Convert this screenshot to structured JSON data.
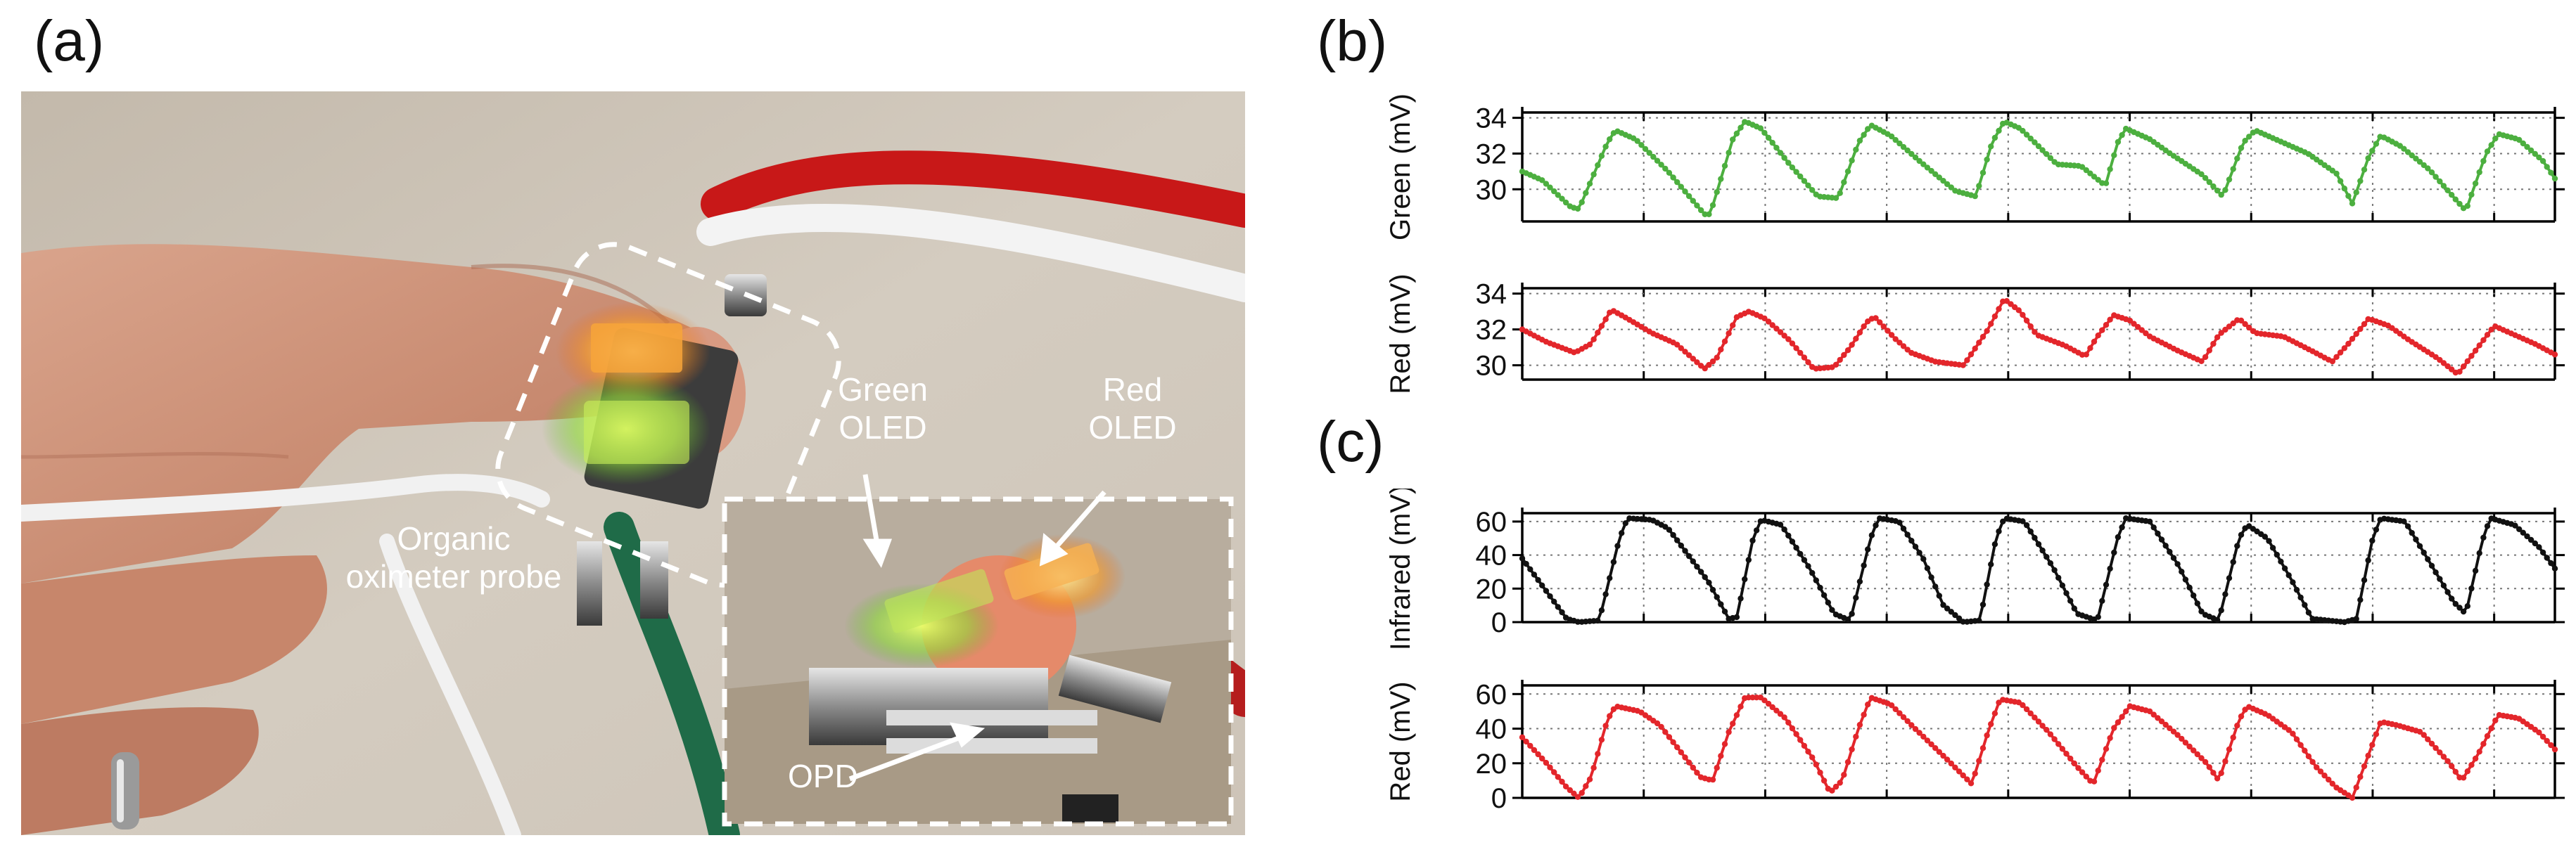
{
  "panels": {
    "a": "(a)",
    "b": "(b)",
    "c": "(c)"
  },
  "photo": {
    "callouts": {
      "green_oled_line1": "Green",
      "green_oled_line2": "OLED",
      "red_oled_line1": "Red",
      "red_oled_line2": "OLED",
      "probe_line1": "Organic",
      "probe_line2": "oximeter probe",
      "opd": "OPD"
    }
  },
  "colors": {
    "green_trace": "#4caf3f",
    "red_trace": "#e3262b",
    "infrared_trace": "#111111",
    "callout_text": "#ffffff"
  },
  "chart_data": [
    {
      "id": "b-green",
      "panel": "(b)",
      "type": "line",
      "ylabel": "Green (mV)",
      "ylim": [
        28.2,
        34.3
      ],
      "yticks": [
        30,
        32,
        34
      ],
      "xticks_count": 8,
      "grid": "dotted",
      "color": "#4caf3f",
      "knots": [
        [
          0,
          31.0
        ],
        [
          0.25,
          30.5
        ],
        [
          0.6,
          29.0
        ],
        [
          0.7,
          28.9
        ],
        [
          1.05,
          32.6
        ],
        [
          1.15,
          33.3
        ],
        [
          1.4,
          32.8
        ],
        [
          1.8,
          31.0
        ],
        [
          2.25,
          28.6
        ],
        [
          2.32,
          28.6
        ],
        [
          2.6,
          32.8
        ],
        [
          2.75,
          33.8
        ],
        [
          2.95,
          33.4
        ],
        [
          3.3,
          31.4
        ],
        [
          3.65,
          29.6
        ],
        [
          3.9,
          29.5
        ],
        [
          4.15,
          32.6
        ],
        [
          4.3,
          33.6
        ],
        [
          4.55,
          33.0
        ],
        [
          4.9,
          31.6
        ],
        [
          5.35,
          29.9
        ],
        [
          5.6,
          29.6
        ],
        [
          5.8,
          32.6
        ],
        [
          5.95,
          33.8
        ],
        [
          6.15,
          33.4
        ],
        [
          6.4,
          32.3
        ],
        [
          6.6,
          31.4
        ],
        [
          6.9,
          31.3
        ],
        [
          7.2,
          30.2
        ],
        [
          7.35,
          32.6
        ],
        [
          7.45,
          33.4
        ],
        [
          7.75,
          32.8
        ],
        [
          8.0,
          32.0
        ],
        [
          8.4,
          30.8
        ],
        [
          8.65,
          29.6
        ],
        [
          8.9,
          32.6
        ],
        [
          9.05,
          33.3
        ],
        [
          9.3,
          32.8
        ],
        [
          9.7,
          32.0
        ],
        [
          10.05,
          30.9
        ],
        [
          10.25,
          29.2
        ],
        [
          10.45,
          31.8
        ],
        [
          10.6,
          33.0
        ],
        [
          10.85,
          32.4
        ],
        [
          11.2,
          31.1
        ],
        [
          11.55,
          29.3
        ],
        [
          11.65,
          28.8
        ],
        [
          11.9,
          32.0
        ],
        [
          12.05,
          33.1
        ],
        [
          12.3,
          32.8
        ],
        [
          12.6,
          31.6
        ],
        [
          12.75,
          30.6
        ]
      ]
    },
    {
      "id": "b-red",
      "panel": "(b)",
      "type": "line",
      "ylabel": "Red (mV)",
      "ylim": [
        29.2,
        34.3
      ],
      "yticks": [
        30,
        32,
        34
      ],
      "xticks_count": 8,
      "grid": "dotted",
      "color": "#e3262b",
      "knots": [
        [
          0,
          32.0
        ],
        [
          0.3,
          31.3
        ],
        [
          0.65,
          30.7
        ],
        [
          0.85,
          31.2
        ],
        [
          1.1,
          33.1
        ],
        [
          1.3,
          32.6
        ],
        [
          1.6,
          31.8
        ],
        [
          1.9,
          31.2
        ],
        [
          2.25,
          29.8
        ],
        [
          2.4,
          30.4
        ],
        [
          2.65,
          32.7
        ],
        [
          2.8,
          33.0
        ],
        [
          3.0,
          32.6
        ],
        [
          3.3,
          31.4
        ],
        [
          3.6,
          29.8
        ],
        [
          3.85,
          29.9
        ],
        [
          4.05,
          31.0
        ],
        [
          4.25,
          32.4
        ],
        [
          4.35,
          32.7
        ],
        [
          4.6,
          31.5
        ],
        [
          4.8,
          30.7
        ],
        [
          5.1,
          30.2
        ],
        [
          5.45,
          30.0
        ],
        [
          5.75,
          32.0
        ],
        [
          5.95,
          33.7
        ],
        [
          6.15,
          33.0
        ],
        [
          6.35,
          31.7
        ],
        [
          6.7,
          31.1
        ],
        [
          6.95,
          30.5
        ],
        [
          7.1,
          31.6
        ],
        [
          7.3,
          32.8
        ],
        [
          7.5,
          32.5
        ],
        [
          7.75,
          31.6
        ],
        [
          8.1,
          30.8
        ],
        [
          8.4,
          30.2
        ],
        [
          8.6,
          31.7
        ],
        [
          8.85,
          32.6
        ],
        [
          9.05,
          31.8
        ],
        [
          9.4,
          31.6
        ],
        [
          9.75,
          30.8
        ],
        [
          10.0,
          30.2
        ],
        [
          10.2,
          31.2
        ],
        [
          10.45,
          32.6
        ],
        [
          10.7,
          32.2
        ],
        [
          10.95,
          31.4
        ],
        [
          11.3,
          30.4
        ],
        [
          11.55,
          29.5
        ],
        [
          11.8,
          31.0
        ],
        [
          12.0,
          32.2
        ],
        [
          12.25,
          31.7
        ],
        [
          12.5,
          31.2
        ],
        [
          12.75,
          30.6
        ]
      ]
    },
    {
      "id": "c-infrared",
      "panel": "(c)",
      "type": "line",
      "ylabel": "Infrared (mV)",
      "ylim": [
        0,
        65
      ],
      "yticks": [
        0,
        20,
        40,
        60
      ],
      "xticks_count": 8,
      "grid": "dotted",
      "color": "#111111",
      "knots": [
        [
          0,
          38
        ],
        [
          0.35,
          15
        ],
        [
          0.55,
          2
        ],
        [
          0.7,
          0
        ],
        [
          0.95,
          1
        ],
        [
          1.2,
          50
        ],
        [
          1.3,
          62
        ],
        [
          1.6,
          61
        ],
        [
          1.8,
          56
        ],
        [
          2.3,
          24
        ],
        [
          2.55,
          2
        ],
        [
          2.65,
          3
        ],
        [
          2.85,
          50
        ],
        [
          2.95,
          61
        ],
        [
          3.2,
          58
        ],
        [
          3.55,
          32
        ],
        [
          3.85,
          5
        ],
        [
          4.05,
          1
        ],
        [
          4.3,
          50
        ],
        [
          4.4,
          62
        ],
        [
          4.65,
          60
        ],
        [
          4.95,
          38
        ],
        [
          5.2,
          10
        ],
        [
          5.45,
          0
        ],
        [
          5.65,
          1
        ],
        [
          5.85,
          50
        ],
        [
          5.95,
          62
        ],
        [
          6.2,
          60
        ],
        [
          6.55,
          33
        ],
        [
          6.85,
          5
        ],
        [
          7.1,
          1
        ],
        [
          7.35,
          50
        ],
        [
          7.45,
          62
        ],
        [
          7.75,
          60
        ],
        [
          8.1,
          34
        ],
        [
          8.4,
          5
        ],
        [
          8.6,
          1
        ],
        [
          8.85,
          50
        ],
        [
          8.95,
          58
        ],
        [
          9.2,
          50
        ],
        [
          9.5,
          25
        ],
        [
          9.75,
          2
        ],
        [
          10.15,
          0
        ],
        [
          10.3,
          2
        ],
        [
          10.5,
          50
        ],
        [
          10.6,
          62
        ],
        [
          10.9,
          60
        ],
        [
          11.2,
          36
        ],
        [
          11.5,
          12
        ],
        [
          11.65,
          5
        ],
        [
          11.85,
          48
        ],
        [
          11.95,
          62
        ],
        [
          12.25,
          58
        ],
        [
          12.55,
          45
        ],
        [
          12.75,
          32
        ]
      ]
    },
    {
      "id": "c-red",
      "panel": "(c)",
      "type": "line",
      "ylabel": "Red (mV)",
      "ylim": [
        0,
        65
      ],
      "yticks": [
        0,
        20,
        40,
        60
      ],
      "xticks_count": 8,
      "grid": "dotted",
      "color": "#e3262b",
      "knots": [
        [
          0,
          35
        ],
        [
          0.3,
          20
        ],
        [
          0.55,
          6
        ],
        [
          0.7,
          0
        ],
        [
          0.85,
          12
        ],
        [
          1.05,
          45
        ],
        [
          1.15,
          53
        ],
        [
          1.45,
          50
        ],
        [
          1.7,
          42
        ],
        [
          2.2,
          12
        ],
        [
          2.35,
          10
        ],
        [
          2.55,
          38
        ],
        [
          2.75,
          58
        ],
        [
          2.95,
          58
        ],
        [
          3.25,
          46
        ],
        [
          3.6,
          22
        ],
        [
          3.8,
          3
        ],
        [
          3.95,
          10
        ],
        [
          4.15,
          40
        ],
        [
          4.3,
          58
        ],
        [
          4.55,
          54
        ],
        [
          4.85,
          40
        ],
        [
          5.25,
          22
        ],
        [
          5.55,
          8
        ],
        [
          5.75,
          38
        ],
        [
          5.9,
          57
        ],
        [
          6.15,
          55
        ],
        [
          6.5,
          38
        ],
        [
          6.85,
          18
        ],
        [
          7.05,
          8
        ],
        [
          7.3,
          40
        ],
        [
          7.5,
          53
        ],
        [
          7.75,
          50
        ],
        [
          8.1,
          36
        ],
        [
          8.45,
          20
        ],
        [
          8.6,
          10
        ],
        [
          8.85,
          45
        ],
        [
          8.95,
          53
        ],
        [
          9.2,
          48
        ],
        [
          9.5,
          38
        ],
        [
          9.8,
          18
        ],
        [
          10.05,
          6
        ],
        [
          10.25,
          0
        ],
        [
          10.45,
          25
        ],
        [
          10.6,
          44
        ],
        [
          10.8,
          42
        ],
        [
          11.1,
          38
        ],
        [
          11.45,
          20
        ],
        [
          11.6,
          10
        ],
        [
          11.8,
          25
        ],
        [
          12.05,
          48
        ],
        [
          12.3,
          46
        ],
        [
          12.55,
          38
        ],
        [
          12.75,
          28
        ]
      ]
    }
  ]
}
